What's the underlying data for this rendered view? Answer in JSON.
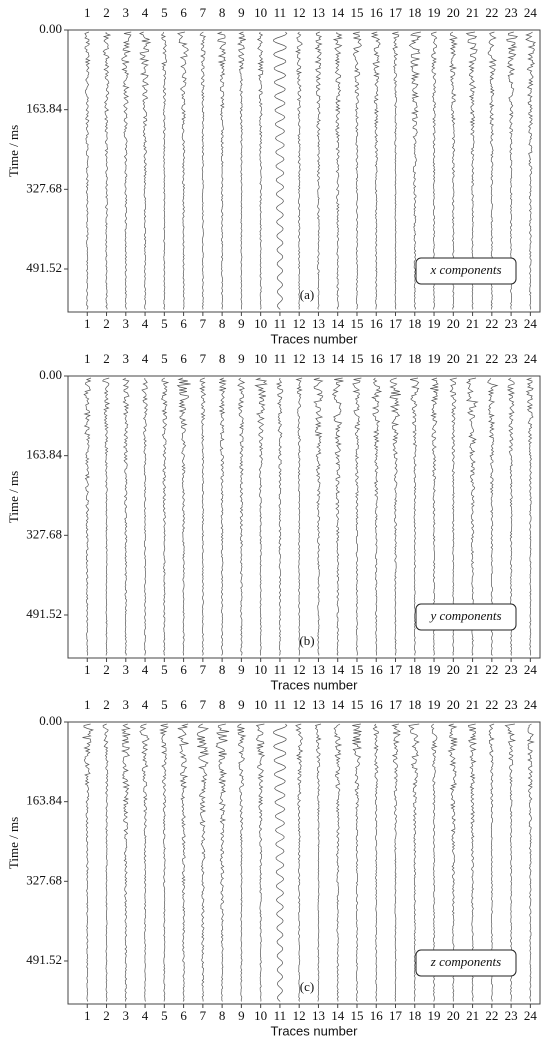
{
  "chart_data": [
    {
      "type": "wiggle",
      "xlabel": "Traces number",
      "ylabel": "Time / ms",
      "panel_label": "(a)",
      "annotation": "x components",
      "xlim": [
        0,
        24.5
      ],
      "xticks": [
        1,
        2,
        3,
        4,
        5,
        6,
        7,
        8,
        9,
        10,
        11,
        12,
        13,
        14,
        15,
        16,
        17,
        18,
        19,
        20,
        21,
        22,
        23,
        24
      ],
      "ylim": [
        0,
        580
      ],
      "yticks": [
        {
          "value": 0,
          "label": "0.00"
        },
        163.84,
        327.68,
        491.52
      ]
    },
    {
      "type": "wiggle",
      "xlabel": "Traces number",
      "ylabel": "Time / ms",
      "panel_label": "(b)",
      "annotation": "y components",
      "xlim": [
        0,
        24.5
      ],
      "xticks": [
        1,
        2,
        3,
        4,
        5,
        6,
        7,
        8,
        9,
        10,
        11,
        12,
        13,
        14,
        15,
        16,
        17,
        18,
        19,
        20,
        21,
        22,
        23,
        24
      ],
      "ylim": [
        0,
        580
      ],
      "yticks": [
        {
          "value": 0,
          "label": "0.00"
        },
        163.84,
        327.68,
        491.52
      ]
    },
    {
      "type": "wiggle",
      "xlabel": "Traces number",
      "ylabel": "Time / ms",
      "panel_label": "(c)",
      "annotation": "z components",
      "xlim": [
        0,
        24.5
      ],
      "xticks": [
        1,
        2,
        3,
        4,
        5,
        6,
        7,
        8,
        9,
        10,
        11,
        12,
        13,
        14,
        15,
        16,
        17,
        18,
        19,
        20,
        21,
        22,
        23,
        24
      ],
      "ylim": [
        0,
        580
      ],
      "yticks": [
        {
          "value": 0,
          "label": "0.00"
        },
        163.84,
        327.68,
        491.52
      ]
    }
  ]
}
